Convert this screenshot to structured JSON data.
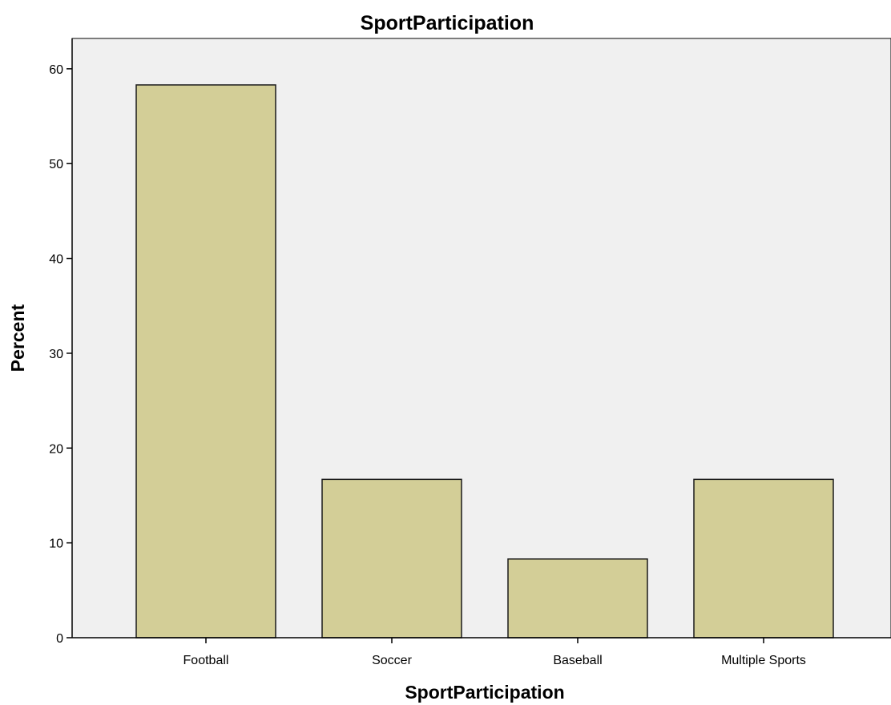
{
  "chart_data": {
    "type": "bar",
    "title": "SportParticipation",
    "xlabel": "SportParticipation",
    "ylabel": "Percent",
    "categories": [
      "Football",
      "Soccer",
      "Baseball",
      "Multiple Sports"
    ],
    "values": [
      58.3,
      16.7,
      8.3,
      16.7
    ],
    "ylim": [
      0,
      63.2
    ],
    "yticks": [
      "0",
      "10",
      "20",
      "30",
      "40",
      "50",
      "60"
    ],
    "grid": false,
    "legend": "none",
    "colors": {
      "bar_fill": "#d3ce97",
      "bar_stroke": "#1a1a1a",
      "plot_background": "#f0f0f0",
      "axis": "#000000"
    }
  }
}
